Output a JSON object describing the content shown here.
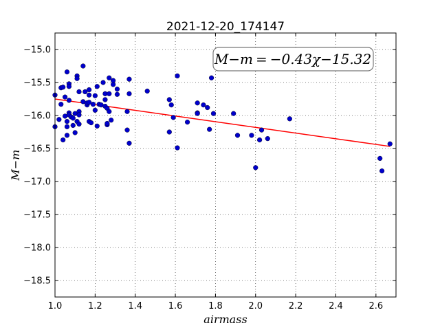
{
  "chart_data": {
    "type": "scatter",
    "title": "2021-12-20_174147",
    "xlabel": "airmass",
    "ylabel": "M−m",
    "xlim": [
      1.0,
      2.7
    ],
    "ylim": [
      -18.75,
      -14.75
    ],
    "invert_y": true,
    "grid": true,
    "x_ticks": [
      "1.0",
      "1.2",
      "1.4",
      "1.6",
      "1.8",
      "2.0",
      "2.2",
      "2.4",
      "2.6"
    ],
    "y_ticks": [
      "−15.0",
      "−15.5",
      "−16.0",
      "−16.5",
      "−17.0",
      "−17.5",
      "−18.0",
      "−18.5"
    ],
    "annotation": "M−m = −0.43χ−15.32",
    "fit": {
      "slope": -0.43,
      "intercept": -15.32,
      "x_range": [
        1.0,
        2.67
      ],
      "color": "#ff0000"
    },
    "points_color": "#0000cc",
    "points": [
      [
        1.0,
        -15.69
      ],
      [
        1.0,
        -16.17
      ],
      [
        1.02,
        -16.06
      ],
      [
        1.03,
        -15.58
      ],
      [
        1.03,
        -15.83
      ],
      [
        1.04,
        -15.57
      ],
      [
        1.04,
        -16.37
      ],
      [
        1.05,
        -15.72
      ],
      [
        1.05,
        -16.01
      ],
      [
        1.06,
        -15.34
      ],
      [
        1.06,
        -16.09
      ],
      [
        1.06,
        -16.3
      ],
      [
        1.06,
        -16.17
      ],
      [
        1.07,
        -15.52
      ],
      [
        1.07,
        -15.56
      ],
      [
        1.07,
        -15.77
      ],
      [
        1.07,
        -15.96
      ],
      [
        1.07,
        -15.99
      ],
      [
        1.08,
        -16.02
      ],
      [
        1.09,
        -16.15
      ],
      [
        1.09,
        -16.04
      ],
      [
        1.1,
        -15.97
      ],
      [
        1.1,
        -16.26
      ],
      [
        1.11,
        -15.4
      ],
      [
        1.11,
        -15.44
      ],
      [
        1.11,
        -16.09
      ],
      [
        1.12,
        -15.64
      ],
      [
        1.12,
        -15.94
      ],
      [
        1.12,
        -15.99
      ],
      [
        1.12,
        -16.13
      ],
      [
        1.14,
        -15.25
      ],
      [
        1.14,
        -15.79
      ],
      [
        1.15,
        -15.64
      ],
      [
        1.16,
        -15.84
      ],
      [
        1.16,
        -15.81
      ],
      [
        1.17,
        -15.61
      ],
      [
        1.17,
        -15.69
      ],
      [
        1.17,
        -15.8
      ],
      [
        1.17,
        -16.09
      ],
      [
        1.18,
        -16.11
      ],
      [
        1.19,
        -15.83
      ],
      [
        1.2,
        -15.7
      ],
      [
        1.2,
        -15.92
      ],
      [
        1.21,
        -16.16
      ],
      [
        1.21,
        -15.56
      ],
      [
        1.22,
        -15.83
      ],
      [
        1.23,
        -15.84
      ],
      [
        1.24,
        -15.5
      ],
      [
        1.25,
        -15.67
      ],
      [
        1.25,
        -15.76
      ],
      [
        1.25,
        -15.86
      ],
      [
        1.26,
        -15.89
      ],
      [
        1.26,
        -16.14
      ],
      [
        1.26,
        -16.12
      ],
      [
        1.27,
        -15.43
      ],
      [
        1.27,
        -15.94
      ],
      [
        1.27,
        -15.67
      ],
      [
        1.28,
        -16.07
      ],
      [
        1.29,
        -15.53
      ],
      [
        1.29,
        -15.47
      ],
      [
        1.31,
        -15.6
      ],
      [
        1.31,
        -15.68
      ],
      [
        1.36,
        -16.22
      ],
      [
        1.36,
        -15.94
      ],
      [
        1.37,
        -16.42
      ],
      [
        1.37,
        -15.45
      ],
      [
        1.37,
        -15.67
      ],
      [
        1.46,
        -15.63
      ],
      [
        1.57,
        -15.76
      ],
      [
        1.57,
        -16.25
      ],
      [
        1.58,
        -15.84
      ],
      [
        1.59,
        -16.03
      ],
      [
        1.61,
        -15.4
      ],
      [
        1.61,
        -16.49
      ],
      [
        1.66,
        -16.1
      ],
      [
        1.71,
        -15.81
      ],
      [
        1.71,
        -15.96
      ],
      [
        1.71,
        -15.97
      ],
      [
        1.74,
        -15.84
      ],
      [
        1.76,
        -15.88
      ],
      [
        1.77,
        -16.21
      ],
      [
        1.78,
        -15.43
      ],
      [
        1.79,
        -15.97
      ],
      [
        1.89,
        -15.97
      ],
      [
        1.91,
        -16.3
      ],
      [
        1.98,
        -16.3
      ],
      [
        2.0,
        -16.79
      ],
      [
        2.02,
        -16.37
      ],
      [
        2.03,
        -16.22
      ],
      [
        2.06,
        -16.35
      ],
      [
        2.17,
        -16.05
      ],
      [
        2.62,
        -16.65
      ],
      [
        2.63,
        -16.84
      ],
      [
        2.67,
        -16.43
      ]
    ]
  }
}
